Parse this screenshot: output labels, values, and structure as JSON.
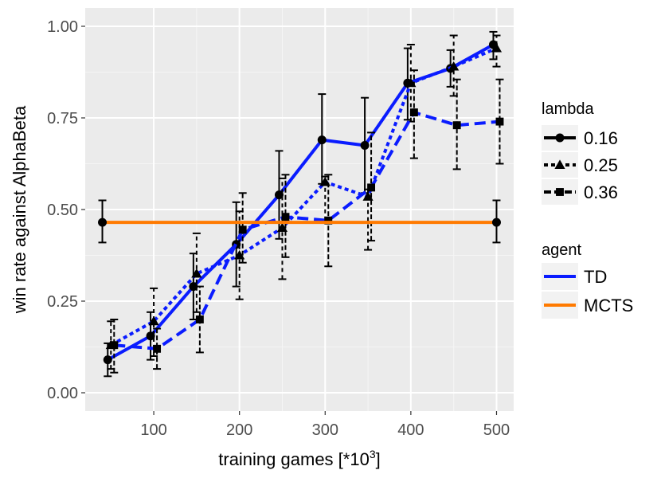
{
  "chart_data": {
    "type": "line",
    "xlabel": "training games [*10",
    "xlabel_superscript": "3",
    "xlabel_suffix": "]",
    "ylabel": "win rate against AlphaBeta",
    "xlim": [
      20,
      520
    ],
    "ylim": [
      -0.05,
      1.05
    ],
    "x_ticks": [
      100,
      200,
      300,
      400,
      500
    ],
    "y_ticks": [
      0.0,
      0.25,
      0.5,
      0.75,
      1.0
    ],
    "y_tick_labels": [
      "0.00",
      "0.25",
      "0.50",
      "0.75",
      "1.00"
    ],
    "grid": true,
    "legend": {
      "lambda": {
        "title": "lambda",
        "entries": [
          "0.16",
          "0.25",
          "0.36"
        ]
      },
      "agent": {
        "title": "agent",
        "entries": [
          "TD",
          "MCTS"
        ]
      }
    },
    "series": [
      {
        "name": "TD lambda=0.16",
        "agent": "TD",
        "lambda": "0.16",
        "color": "#0a1cff",
        "linestyle": "solid",
        "marker": "circle",
        "x": [
          50,
          100,
          150,
          200,
          250,
          300,
          350,
          400,
          450,
          500
        ],
        "y": [
          0.09,
          0.155,
          0.29,
          0.405,
          0.54,
          0.69,
          0.675,
          0.845,
          0.885,
          0.95
        ],
        "err_lo": [
          0.045,
          0.09,
          0.2,
          0.29,
          0.42,
          0.57,
          0.545,
          0.745,
          0.835,
          0.91
        ],
        "err_hi": [
          0.135,
          0.22,
          0.38,
          0.52,
          0.66,
          0.815,
          0.805,
          0.94,
          0.935,
          0.985
        ]
      },
      {
        "name": "TD lambda=0.25",
        "agent": "TD",
        "lambda": "0.25",
        "color": "#0a1cff",
        "linestyle": "dotted",
        "marker": "triangle",
        "x": [
          50,
          100,
          150,
          200,
          250,
          300,
          350,
          400,
          450,
          500
        ],
        "y": [
          0.13,
          0.195,
          0.325,
          0.375,
          0.45,
          0.575,
          0.535,
          0.845,
          0.89,
          0.94
        ],
        "err_lo": [
          0.065,
          0.1,
          0.22,
          0.255,
          0.31,
          0.47,
          0.39,
          0.74,
          0.81,
          0.89
        ],
        "err_hi": [
          0.195,
          0.285,
          0.435,
          0.495,
          0.585,
          0.59,
          0.555,
          0.95,
          0.975,
          0.975
        ]
      },
      {
        "name": "TD lambda=0.36",
        "agent": "TD",
        "lambda": "0.36",
        "color": "#0a1cff",
        "linestyle": "dashed",
        "marker": "square",
        "x": [
          50,
          100,
          150,
          200,
          250,
          300,
          350,
          400,
          450,
          500
        ],
        "y": [
          0.13,
          0.12,
          0.2,
          0.445,
          0.48,
          0.47,
          0.56,
          0.765,
          0.73,
          0.74
        ],
        "err_lo": [
          0.055,
          0.065,
          0.11,
          0.355,
          0.37,
          0.345,
          0.415,
          0.64,
          0.61,
          0.625
        ],
        "err_hi": [
          0.2,
          0.175,
          0.29,
          0.545,
          0.595,
          0.595,
          0.71,
          0.88,
          0.855,
          0.855
        ]
      },
      {
        "name": "MCTS",
        "agent": "MCTS",
        "lambda": "0.16",
        "color": "#ff7a00",
        "linestyle": "solid",
        "marker": "circle",
        "x": [
          40,
          500
        ],
        "y": [
          0.465,
          0.465
        ],
        "err_lo": [
          0.41,
          0.41
        ],
        "err_hi": [
          0.525,
          0.525
        ]
      }
    ]
  }
}
